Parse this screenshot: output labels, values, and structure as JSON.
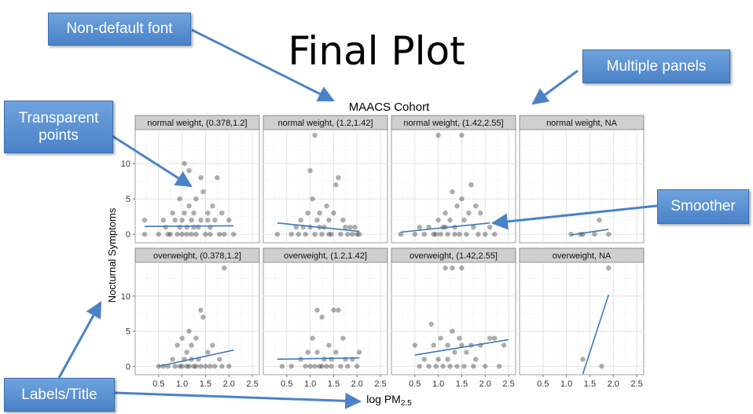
{
  "slide": {
    "title": "Final Plot"
  },
  "callouts": {
    "non_default_font": "Non-default font",
    "multiple_panels": "Multiple panels",
    "transparent_points": "Transparent points",
    "smoother": "Smoother",
    "labels_title": "Labels/Title"
  },
  "colors": {
    "callout_fill": "#5b93d5",
    "callout_text": "#ffffff",
    "smoother": "#3d7ab8",
    "strip": "#cfcfcf",
    "point": "#333333"
  },
  "chart_data": {
    "type": "scatter",
    "title": "MAACS Cohort",
    "xlabel": "log PM",
    "xlabel_subscript": "2.5",
    "ylabel": "Nocturnal Symptoms",
    "xlim": [
      0.0,
      2.65
    ],
    "ylim": [
      -1.2,
      14.8
    ],
    "x_ticks": [
      0.5,
      1.0,
      1.5,
      2.0,
      2.5
    ],
    "x_tick_labels": [
      "0.5",
      "1.0",
      "1.5",
      "2.0",
      "2.5"
    ],
    "y_ticks": [
      0,
      5,
      10
    ],
    "y_tick_labels": [
      "0",
      "5",
      "10"
    ],
    "grid": true,
    "point_alpha": 0.4,
    "panels": [
      {
        "strip": "normal weight, (0.378,1.2]",
        "points": [
          [
            0.2,
            0
          ],
          [
            0.2,
            2
          ],
          [
            0.5,
            0
          ],
          [
            0.6,
            2
          ],
          [
            0.65,
            1
          ],
          [
            0.7,
            0
          ],
          [
            0.8,
            3
          ],
          [
            0.85,
            2
          ],
          [
            0.9,
            0
          ],
          [
            0.95,
            5
          ],
          [
            1.0,
            0
          ],
          [
            1.0,
            2
          ],
          [
            1.05,
            3
          ],
          [
            1.05,
            10
          ],
          [
            1.1,
            0
          ],
          [
            1.1,
            1
          ],
          [
            1.15,
            9
          ],
          [
            1.15,
            4
          ],
          [
            1.2,
            0
          ],
          [
            1.2,
            2
          ],
          [
            1.25,
            3
          ],
          [
            1.3,
            5
          ],
          [
            1.3,
            0
          ],
          [
            1.35,
            1
          ],
          [
            1.4,
            8
          ],
          [
            1.4,
            2
          ],
          [
            1.45,
            6
          ],
          [
            1.5,
            0
          ],
          [
            1.55,
            3
          ],
          [
            1.55,
            2
          ],
          [
            1.6,
            0
          ],
          [
            1.65,
            4
          ],
          [
            1.7,
            2
          ],
          [
            1.75,
            8
          ],
          [
            1.8,
            0
          ],
          [
            1.85,
            3
          ],
          [
            1.9,
            0
          ],
          [
            2.0,
            2
          ],
          [
            2.1,
            0
          ],
          [
            0.75,
            0
          ],
          [
            0.95,
            1
          ],
          [
            1.25,
            1
          ],
          [
            1.6,
            1
          ]
        ],
        "smoother": [
          [
            0.2,
            1.1
          ],
          [
            2.1,
            1.2
          ]
        ]
      },
      {
        "strip": "normal weight, (1.2,1.42]",
        "points": [
          [
            0.3,
            0
          ],
          [
            0.6,
            0
          ],
          [
            0.7,
            1
          ],
          [
            0.75,
            0
          ],
          [
            0.8,
            2
          ],
          [
            0.9,
            0
          ],
          [
            0.95,
            3
          ],
          [
            1.0,
            1
          ],
          [
            1.0,
            9
          ],
          [
            1.05,
            5
          ],
          [
            1.1,
            0
          ],
          [
            1.1,
            14
          ],
          [
            1.15,
            2
          ],
          [
            1.2,
            3
          ],
          [
            1.25,
            0
          ],
          [
            1.3,
            1
          ],
          [
            1.35,
            4
          ],
          [
            1.4,
            2
          ],
          [
            1.45,
            0
          ],
          [
            1.5,
            3
          ],
          [
            1.55,
            7
          ],
          [
            1.6,
            8
          ],
          [
            1.65,
            0
          ],
          [
            1.7,
            2
          ],
          [
            1.75,
            1
          ],
          [
            1.8,
            0
          ],
          [
            1.85,
            1
          ],
          [
            1.9,
            0
          ],
          [
            1.95,
            1
          ],
          [
            2.0,
            0
          ],
          [
            2.05,
            0
          ],
          [
            1.2,
            1
          ],
          [
            1.4,
            0
          ],
          [
            0.85,
            1
          ]
        ],
        "smoother": [
          [
            0.3,
            1.6
          ],
          [
            2.05,
            0.4
          ]
        ]
      },
      {
        "strip": "normal weight, (1.42,2.55]",
        "points": [
          [
            0.2,
            0
          ],
          [
            0.5,
            0
          ],
          [
            0.6,
            1
          ],
          [
            0.7,
            0
          ],
          [
            0.8,
            1
          ],
          [
            0.9,
            0
          ],
          [
            1.0,
            2
          ],
          [
            1.0,
            14
          ],
          [
            1.05,
            0
          ],
          [
            1.1,
            1
          ],
          [
            1.15,
            3
          ],
          [
            1.2,
            0
          ],
          [
            1.25,
            2
          ],
          [
            1.3,
            6
          ],
          [
            1.35,
            1
          ],
          [
            1.4,
            4
          ],
          [
            1.45,
            0
          ],
          [
            1.5,
            5
          ],
          [
            1.5,
            14
          ],
          [
            1.55,
            2
          ],
          [
            1.6,
            0
          ],
          [
            1.65,
            3
          ],
          [
            1.7,
            7
          ],
          [
            1.75,
            1
          ],
          [
            1.8,
            4
          ],
          [
            1.85,
            0
          ],
          [
            1.9,
            3
          ],
          [
            2.0,
            0
          ],
          [
            2.1,
            1
          ],
          [
            2.2,
            0
          ],
          [
            1.15,
            1
          ],
          [
            1.35,
            0
          ],
          [
            0.95,
            0
          ]
        ],
        "smoother": [
          [
            0.2,
            0.3
          ],
          [
            2.1,
            1.6
          ]
        ]
      },
      {
        "strip": "normal weight, NA",
        "points": [
          [
            1.1,
            0
          ],
          [
            1.3,
            0
          ],
          [
            1.35,
            0
          ],
          [
            1.6,
            0
          ],
          [
            1.7,
            2
          ],
          [
            1.9,
            0
          ]
        ],
        "smoother": [
          [
            1.1,
            -0.1
          ],
          [
            1.9,
            0.7
          ]
        ]
      },
      {
        "strip": "overweight, (0.378,1.2]",
        "points": [
          [
            0.5,
            0
          ],
          [
            0.6,
            0
          ],
          [
            0.7,
            0
          ],
          [
            0.8,
            1
          ],
          [
            0.85,
            0
          ],
          [
            0.9,
            3
          ],
          [
            0.95,
            0
          ],
          [
            1.0,
            4
          ],
          [
            1.0,
            0
          ],
          [
            1.05,
            1
          ],
          [
            1.1,
            0
          ],
          [
            1.1,
            2
          ],
          [
            1.15,
            5
          ],
          [
            1.15,
            0
          ],
          [
            1.2,
            3
          ],
          [
            1.25,
            0
          ],
          [
            1.3,
            4
          ],
          [
            1.35,
            1
          ],
          [
            1.4,
            8
          ],
          [
            1.4,
            0
          ],
          [
            1.45,
            7
          ],
          [
            1.5,
            0
          ],
          [
            1.55,
            2
          ],
          [
            1.6,
            0
          ],
          [
            1.65,
            3
          ],
          [
            1.7,
            0
          ],
          [
            1.8,
            1
          ],
          [
            1.85,
            0
          ],
          [
            1.9,
            14
          ],
          [
            2.0,
            0
          ],
          [
            1.3,
            0
          ],
          [
            1.2,
            1
          ]
        ],
        "smoother": [
          [
            0.5,
            0.0
          ],
          [
            2.1,
            2.3
          ]
        ]
      },
      {
        "strip": "overweight, (1.2,1.42]",
        "points": [
          [
            0.4,
            0
          ],
          [
            0.6,
            0
          ],
          [
            0.8,
            1
          ],
          [
            0.9,
            0
          ],
          [
            0.95,
            2
          ],
          [
            1.0,
            0
          ],
          [
            1.05,
            4
          ],
          [
            1.1,
            0
          ],
          [
            1.15,
            8
          ],
          [
            1.15,
            2
          ],
          [
            1.2,
            0
          ],
          [
            1.25,
            7
          ],
          [
            1.3,
            1
          ],
          [
            1.35,
            0
          ],
          [
            1.4,
            3
          ],
          [
            1.45,
            0
          ],
          [
            1.5,
            8
          ],
          [
            1.55,
            2
          ],
          [
            1.6,
            8
          ],
          [
            1.65,
            0
          ],
          [
            1.7,
            4
          ],
          [
            1.75,
            1
          ],
          [
            1.8,
            0
          ],
          [
            1.9,
            1
          ],
          [
            2.0,
            0
          ],
          [
            2.05,
            2
          ],
          [
            1.25,
            0
          ],
          [
            1.45,
            1
          ]
        ],
        "smoother": [
          [
            0.3,
            1.0
          ],
          [
            2.05,
            1.2
          ]
        ]
      },
      {
        "strip": "overweight, (1.42,2.55]",
        "points": [
          [
            0.5,
            3
          ],
          [
            0.6,
            0
          ],
          [
            0.7,
            1
          ],
          [
            0.8,
            0
          ],
          [
            0.85,
            6
          ],
          [
            0.9,
            3
          ],
          [
            0.95,
            0
          ],
          [
            1.0,
            1
          ],
          [
            1.05,
            4
          ],
          [
            1.1,
            0
          ],
          [
            1.15,
            14
          ],
          [
            1.2,
            3
          ],
          [
            1.25,
            0
          ],
          [
            1.3,
            5
          ],
          [
            1.3,
            14
          ],
          [
            1.35,
            2
          ],
          [
            1.4,
            0
          ],
          [
            1.45,
            4
          ],
          [
            1.5,
            14
          ],
          [
            1.5,
            3
          ],
          [
            1.55,
            0
          ],
          [
            1.6,
            2
          ],
          [
            1.7,
            3
          ],
          [
            1.75,
            0
          ],
          [
            1.8,
            1
          ],
          [
            1.9,
            3
          ],
          [
            2.0,
            0
          ],
          [
            2.1,
            4
          ],
          [
            2.2,
            4
          ],
          [
            2.3,
            0
          ],
          [
            2.4,
            3
          ],
          [
            1.2,
            1
          ]
        ],
        "smoother": [
          [
            0.5,
            1.6
          ],
          [
            2.5,
            3.8
          ]
        ]
      },
      {
        "strip": "overweight, NA",
        "points": [
          [
            1.35,
            1
          ],
          [
            1.75,
            0
          ],
          [
            1.9,
            14
          ]
        ],
        "smoother": [
          [
            1.35,
            -1.1
          ],
          [
            1.9,
            10.2
          ]
        ]
      }
    ]
  }
}
